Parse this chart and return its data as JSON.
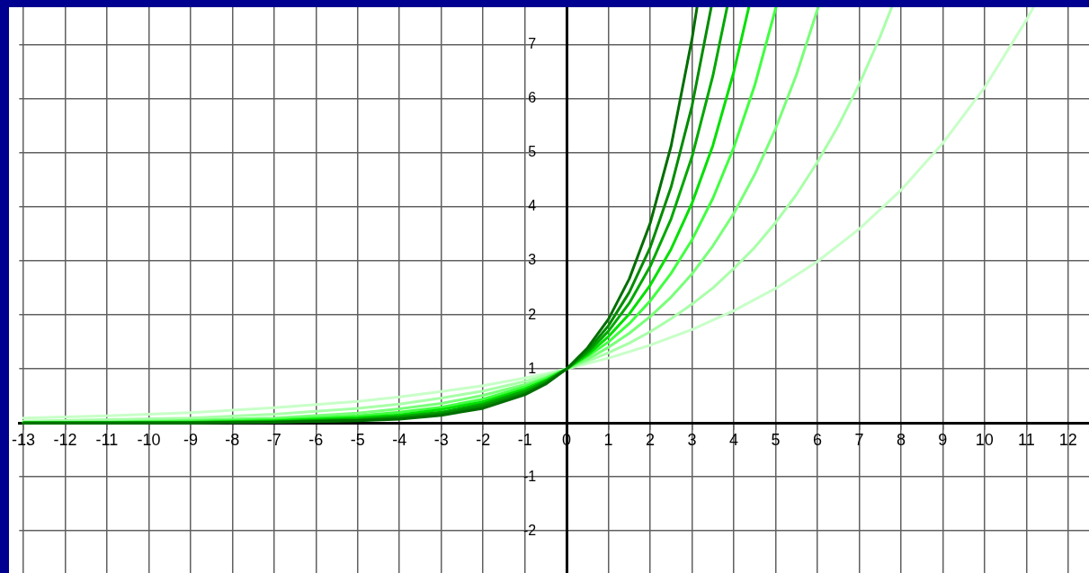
{
  "chart_data": {
    "type": "line",
    "xlim": [
      -13.1,
      12.5
    ],
    "ylim": [
      -2.78,
      7.7
    ],
    "xticks": [
      -13,
      -12,
      -11,
      -10,
      -9,
      -8,
      -7,
      -6,
      -5,
      -4,
      -3,
      -2,
      -1,
      0,
      1,
      2,
      3,
      4,
      5,
      6,
      7,
      8,
      9,
      10,
      11,
      12
    ],
    "yticks": [
      -2,
      -1,
      {
        "value": 0,
        "label": null
      },
      1,
      2,
      3,
      4,
      5,
      6,
      7
    ],
    "grid": true,
    "legend": false,
    "marker": "none",
    "line_style": "solid",
    "series": [
      {
        "color": "#006e00",
        "x": [
          -13,
          -11,
          -9,
          -7,
          -5,
          -4,
          -3,
          -2,
          -1,
          -0.5,
          0,
          0.5,
          1,
          1.5,
          2,
          2.5,
          3,
          3.12
        ],
        "values": [
          0,
          0,
          0,
          0.01,
          0.04,
          0.07,
          0.14,
          0.27,
          0.52,
          0.72,
          1,
          1.39,
          1.92,
          2.67,
          3.7,
          5.13,
          7.11,
          7.7
        ]
      },
      {
        "color": "#008c00",
        "x": [
          -13,
          -11,
          -9,
          -7,
          -5,
          -4,
          -3,
          -2,
          -1,
          -0.5,
          0,
          0.5,
          1,
          1.5,
          2,
          2.5,
          3,
          3.46
        ],
        "values": [
          0,
          0,
          0,
          0.02,
          0.05,
          0.09,
          0.17,
          0.31,
          0.55,
          0.74,
          1,
          1.34,
          1.8,
          2.42,
          3.25,
          4.37,
          5.87,
          7.7
        ]
      },
      {
        "color": "#00a800",
        "x": [
          -13,
          -11,
          -9,
          -7,
          -5,
          -4,
          -3,
          -2,
          -1,
          -0.5,
          0,
          0.5,
          1,
          1.5,
          2,
          2.5,
          3,
          3.5,
          3.84
        ],
        "values": [
          0,
          0,
          0.01,
          0.02,
          0.07,
          0.12,
          0.2,
          0.35,
          0.59,
          0.77,
          1,
          1.3,
          1.7,
          2.22,
          2.9,
          3.78,
          4.93,
          6.43,
          7.7
        ]
      },
      {
        "color": "#00e000",
        "x": [
          -13,
          -11,
          -9,
          -7,
          -5,
          -4,
          -3,
          -2,
          -1,
          -0.5,
          0,
          0.5,
          1,
          1.5,
          2,
          2.5,
          3,
          3.5,
          4,
          4.36
        ],
        "values": [
          0,
          0.01,
          0.01,
          0.04,
          0.1,
          0.15,
          0.25,
          0.39,
          0.63,
          0.79,
          1,
          1.26,
          1.6,
          2.02,
          2.55,
          3.22,
          4.07,
          5.14,
          6.5,
          7.7
        ]
      },
      {
        "color": "#40ff40",
        "x": [
          -13,
          -11,
          -9,
          -7,
          -5,
          -4,
          -3,
          -2,
          -1,
          -0.5,
          0,
          0.5,
          1,
          1.5,
          2,
          2.5,
          3,
          3.5,
          4,
          4.5,
          5.01
        ],
        "values": [
          0.01,
          0.01,
          0.03,
          0.06,
          0.13,
          0.2,
          0.29,
          0.44,
          0.67,
          0.82,
          1,
          1.23,
          1.5,
          1.84,
          2.26,
          2.77,
          3.39,
          4.16,
          5.1,
          6.25,
          7.7
        ]
      },
      {
        "color": "#78ff78",
        "x": [
          -13,
          -11,
          -9,
          -7,
          -5,
          -4,
          -3,
          -2,
          -1,
          -0.5,
          0,
          0.5,
          1,
          1.5,
          2,
          2.5,
          3,
          3.5,
          4,
          4.5,
          5,
          5.5,
          6.02
        ],
        "values": [
          0.01,
          0.02,
          0.05,
          0.09,
          0.18,
          0.26,
          0.36,
          0.51,
          0.71,
          0.84,
          1,
          1.18,
          1.4,
          1.66,
          1.97,
          2.33,
          2.76,
          3.28,
          3.88,
          4.6,
          5.45,
          6.45,
          7.7
        ]
      },
      {
        "color": "#a8ffa8",
        "x": [
          -13,
          -11,
          -9,
          -7,
          -5,
          -4,
          -3,
          -2,
          -1,
          -0.5,
          0,
          0.5,
          1,
          1.5,
          2,
          2.5,
          3,
          3.5,
          4,
          4.5,
          5,
          5.5,
          6,
          6.5,
          7,
          7.5,
          7.78
        ],
        "values": [
          0.03,
          0.06,
          0.09,
          0.16,
          0.27,
          0.35,
          0.46,
          0.59,
          0.77,
          0.88,
          1,
          1.14,
          1.3,
          1.48,
          1.69,
          1.93,
          2.2,
          2.5,
          2.86,
          3.25,
          3.71,
          4.23,
          4.83,
          5.5,
          6.27,
          7.15,
          7.7
        ]
      },
      {
        "color": "#c8ffc8",
        "x": [
          -13,
          -11,
          -9,
          -7,
          -5,
          -4,
          -3,
          -2,
          -1,
          -0.5,
          0,
          1,
          2,
          3,
          4,
          5,
          6,
          7,
          8,
          9,
          10,
          11,
          11.17
        ],
        "values": [
          0.09,
          0.13,
          0.19,
          0.28,
          0.4,
          0.48,
          0.58,
          0.69,
          0.83,
          0.91,
          1,
          1.2,
          1.44,
          1.73,
          2.08,
          2.49,
          2.99,
          3.59,
          4.31,
          5.18,
          6.21,
          7.46,
          7.7
        ]
      }
    ]
  }
}
